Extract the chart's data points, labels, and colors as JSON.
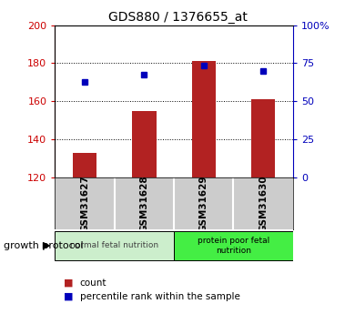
{
  "title": "GDS880 / 1376655_at",
  "categories": [
    "GSM31627",
    "GSM31628",
    "GSM31629",
    "GSM31630"
  ],
  "bar_values": [
    133,
    155,
    181,
    161
  ],
  "dot_values": [
    170,
    174,
    179,
    176
  ],
  "ylim_left": [
    120,
    200
  ],
  "ylim_right": [
    0,
    100
  ],
  "left_ticks": [
    120,
    140,
    160,
    180,
    200
  ],
  "right_ticks": [
    0,
    25,
    50,
    75,
    100
  ],
  "right_tick_labels": [
    "0",
    "25",
    "50",
    "75",
    "100%"
  ],
  "bar_color": "#b22222",
  "dot_color": "#0000bb",
  "bar_width": 0.4,
  "group0_label": "normal fetal nutrition",
  "group0_color": "#cceecc",
  "group1_label": "protein poor fetal\nnutrition",
  "group1_color": "#44ee44",
  "group_label": "growth protocol",
  "legend_count_label": "count",
  "legend_pct_label": "percentile rank within the sample",
  "tick_color_left": "#cc0000",
  "tick_color_right": "#0000bb",
  "background_color": "#ffffff",
  "label_bg_color": "#cccccc",
  "grid_yticks": [
    140,
    160,
    180
  ]
}
